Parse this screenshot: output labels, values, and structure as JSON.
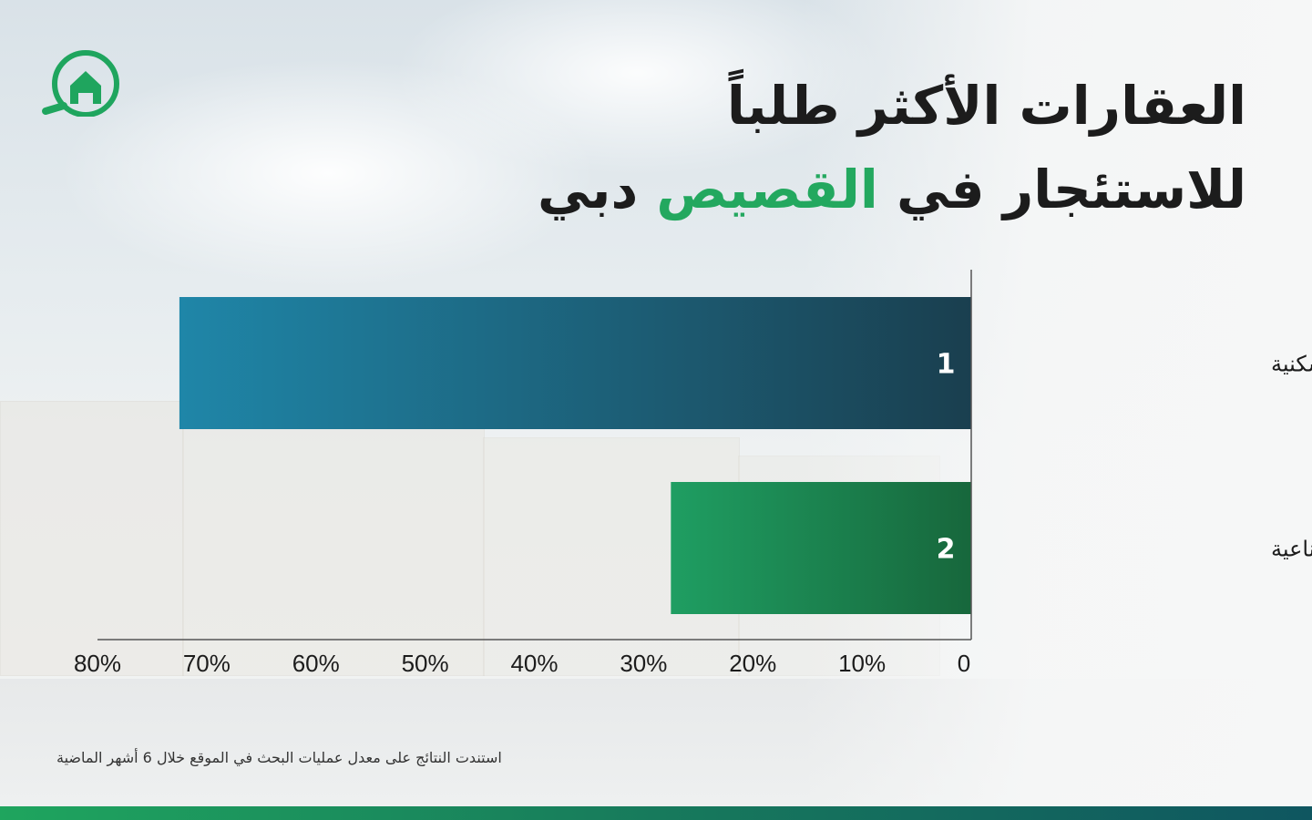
{
  "title": {
    "line1": "العقارات الأكثر طلباً",
    "line2_prefix": "للاستئجار في ",
    "line2_accent": "القصيص",
    "line2_suffix": " دبي"
  },
  "footnote": "استندت النتائج على معدل عمليات البحث في الموقع خلال 6 أشهر الماضية",
  "colors": {
    "accent_green": "#23a85f",
    "bar1_start": "#1f86a8",
    "bar1_end": "#1a3f4f",
    "bar2_start": "#1f9e62",
    "bar2_end": "#17673c"
  },
  "chart_data": {
    "type": "bar",
    "orientation": "horizontal",
    "x_direction": "right-to-left",
    "categories": [
      "منطقة القصيص السكنية",
      "منطقة القصيص الصناعية"
    ],
    "rank_labels": [
      "1",
      "2"
    ],
    "values": [
      72.5,
      27.5
    ],
    "xlim": [
      0,
      80
    ],
    "x_ticks": [
      "0",
      "10%",
      "20%",
      "30%",
      "40%",
      "50%",
      "60%",
      "70%",
      "80%"
    ],
    "grid": false
  }
}
